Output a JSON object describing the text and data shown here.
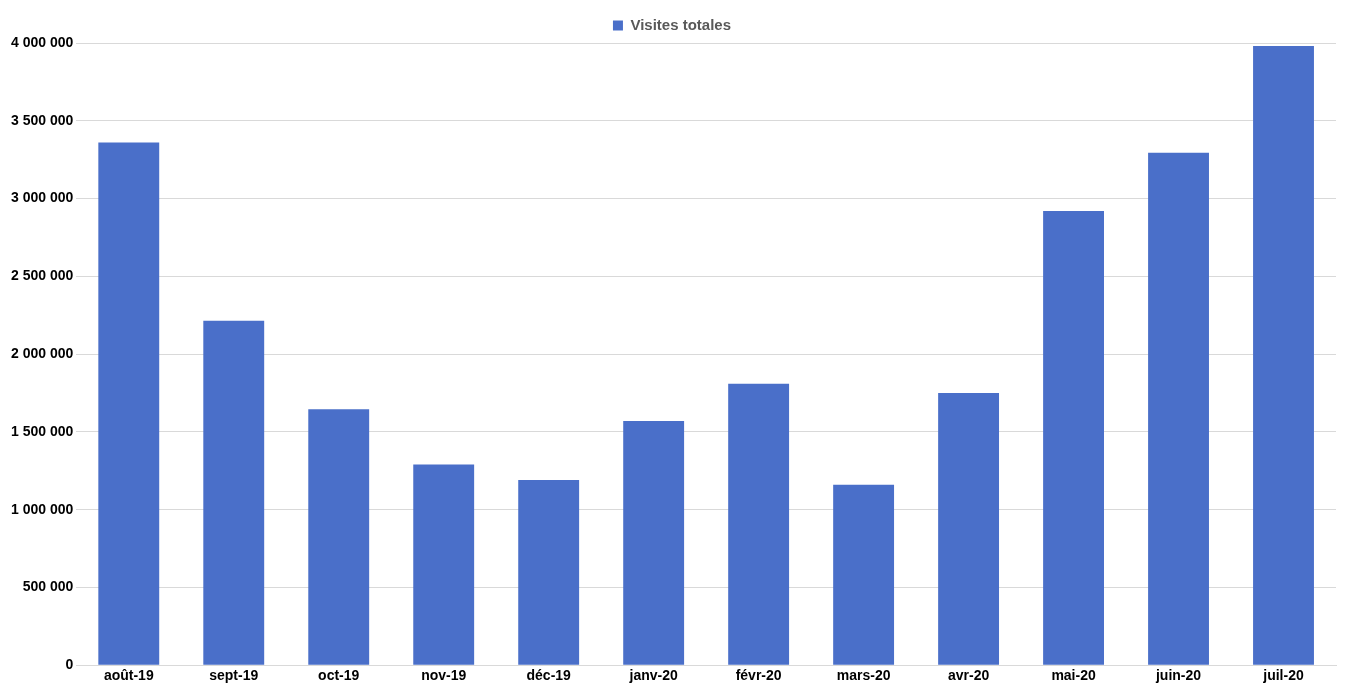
{
  "chart_data": {
    "type": "bar",
    "categories": [
      "août-19",
      "sept-19",
      "oct-19",
      "nov-19",
      "déc-19",
      "janv-20",
      "févr-20",
      "mars-20",
      "avr-20",
      "mai-20",
      "juin-20",
      "juil-20"
    ],
    "series": [
      {
        "name": "Visites totales",
        "color": "#4a6fc9",
        "values": [
          3360000,
          2215000,
          1645000,
          1290000,
          1190000,
          1570000,
          1810000,
          1160000,
          1750000,
          2920000,
          3295000,
          3980000
        ]
      }
    ],
    "ylim": [
      0,
      4000000
    ],
    "yticks": [
      {
        "value": 0,
        "label": "0"
      },
      {
        "value": 500000,
        "label": "500 000"
      },
      {
        "value": 1000000,
        "label": "1 000 000"
      },
      {
        "value": 1500000,
        "label": "1 500 000"
      },
      {
        "value": 2000000,
        "label": "2 000 000"
      },
      {
        "value": 2500000,
        "label": "2 500 000"
      },
      {
        "value": 3000000,
        "label": "3 000 000"
      },
      {
        "value": 3500000,
        "label": "3 500 000"
      },
      {
        "value": 4000000,
        "label": "4 000 000"
      }
    ],
    "grid": "y",
    "legend": "top"
  }
}
